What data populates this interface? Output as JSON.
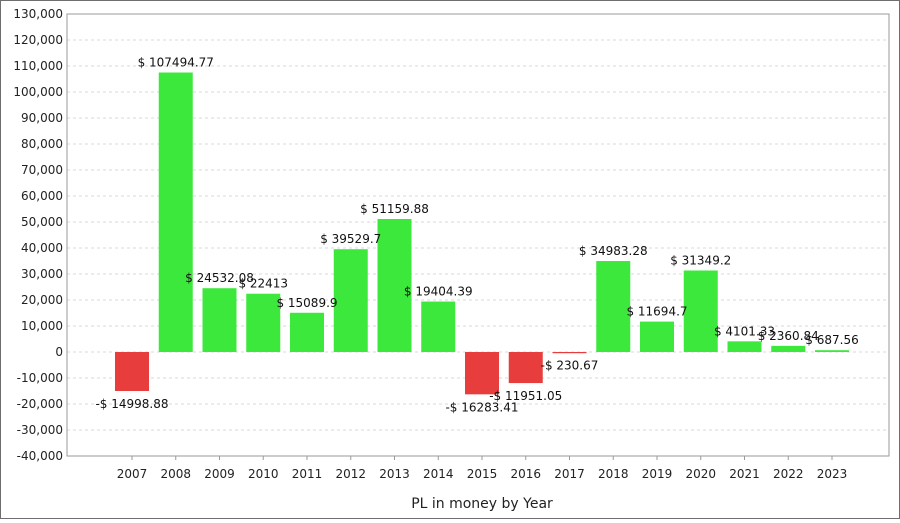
{
  "chart_data": {
    "type": "bar",
    "title": "",
    "xlabel": "PL in money by Year",
    "ylabel": "",
    "ylim": [
      -40000,
      130000
    ],
    "ytick_step": 10000,
    "yticks": [
      "130,000",
      "120,000",
      "110,000",
      "100,000",
      "90,000",
      "80,000",
      "70,000",
      "60,000",
      "50,000",
      "40,000",
      "30,000",
      "20,000",
      "10,000",
      "0",
      "-10,000",
      "-20,000",
      "-30,000",
      "-40,000"
    ],
    "grid": true,
    "legend": "none",
    "categories": [
      "2007",
      "2008",
      "2009",
      "2010",
      "2011",
      "2012",
      "2013",
      "2014",
      "2015",
      "2016",
      "2017",
      "2018",
      "2019",
      "2020",
      "2021",
      "2022",
      "2023"
    ],
    "values": [
      -14998.88,
      107494.77,
      24532.08,
      22413,
      15089.9,
      39529.7,
      51159.88,
      19404.39,
      -16283.41,
      -11951.05,
      -230.67,
      34983.28,
      11694.7,
      31349.2,
      4101.33,
      2360.84,
      687.56
    ],
    "data_labels": [
      "-$ 14998.88",
      "$ 107494.77",
      "$ 24532.08",
      "$ 22413",
      "$ 15089.9",
      "$ 39529.7",
      "$ 51159.88",
      "$ 19404.39",
      "-$ 16283.41",
      "-$ 11951.05",
      "-$ 230.67",
      "$ 34983.28",
      "$ 11694.7",
      "$ 31349.2",
      "$ 4101.33",
      "$ 2360.84",
      "$ 687.56"
    ],
    "colors": {
      "positive": "#3de83d",
      "negative": "#e83d3d",
      "grid": "#d9d9d9",
      "axis": "#9a9a9a"
    }
  }
}
